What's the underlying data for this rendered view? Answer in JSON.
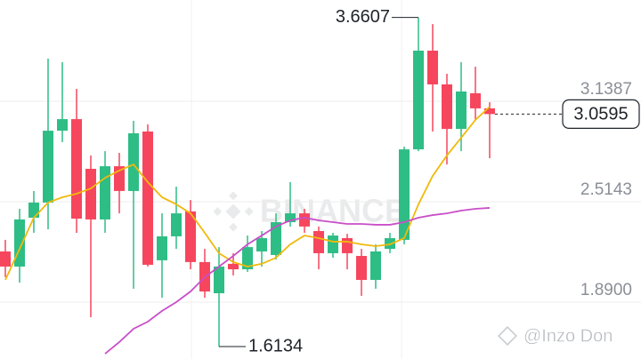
{
  "chart_data": {
    "type": "candlestick",
    "up_color": "#2ebd85",
    "down_color": "#f6465d",
    "open": [
      2.205,
      2.111,
      2.415,
      2.509,
      2.956,
      3.028,
      2.719,
      2.404,
      2.735,
      2.581,
      2.951,
      2.15,
      2.299,
      2.454,
      2.139,
      1.945,
      2.128,
      2.094,
      2.205,
      2.183,
      2.387,
      2.442,
      2.332,
      2.194,
      2.288,
      2.177,
      2.028,
      2.221,
      2.277,
      2.84,
      3.454,
      3.244,
      2.967,
      3.189,
      3.095
    ],
    "high": [
      2.277,
      2.47,
      2.581,
      3.404,
      3.382,
      3.216,
      2.802,
      2.829,
      2.818,
      3.017,
      2.995,
      2.442,
      2.608,
      2.525,
      2.221,
      2.232,
      2.194,
      2.304,
      2.332,
      2.442,
      2.636,
      2.47,
      2.36,
      2.321,
      2.315,
      2.221,
      2.249,
      2.321,
      2.857,
      3.6607,
      3.619,
      3.31,
      3.382,
      3.354,
      3.133
    ],
    "low": [
      2.045,
      2.011,
      2.321,
      2.343,
      2.885,
      2.321,
      1.796,
      2.321,
      2.442,
      1.973,
      2.111,
      1.917,
      2.221,
      2.094,
      1.917,
      1.6134,
      2.056,
      2.078,
      2.111,
      2.155,
      2.36,
      2.321,
      2.094,
      2.166,
      2.094,
      1.929,
      1.973,
      2.194,
      2.249,
      2.829,
      2.951,
      2.746,
      2.829,
      3.023,
      2.785
    ],
    "close": [
      2.111,
      2.404,
      2.509,
      2.956,
      3.028,
      2.409,
      2.404,
      2.735,
      2.581,
      2.94,
      2.122,
      2.299,
      2.442,
      2.139,
      1.956,
      2.111,
      2.094,
      2.232,
      2.288,
      2.387,
      2.442,
      2.36,
      2.194,
      2.304,
      2.194,
      2.028,
      2.205,
      2.288,
      2.84,
      3.454,
      3.244,
      2.967,
      3.2,
      3.095,
      3.0595
    ],
    "lines": [
      {
        "color": "#f0b90b",
        "values": [
          2.028,
          2.221,
          2.415,
          2.509,
          2.542,
          2.564,
          2.597,
          2.663,
          2.708,
          2.746,
          2.636,
          2.542,
          2.498,
          2.442,
          2.321,
          2.194,
          2.139,
          2.111,
          2.128,
          2.166,
          2.249,
          2.304,
          2.288,
          2.266,
          2.266,
          2.249,
          2.238,
          2.249,
          2.288,
          2.498,
          2.675,
          2.802,
          2.912,
          3.023,
          3.105
        ]
      },
      {
        "color": "#c94fc8",
        "values": [
          null,
          null,
          null,
          null,
          null,
          null,
          null,
          1.569,
          1.641,
          1.724,
          1.768,
          1.835,
          1.89,
          1.956,
          2.045,
          2.111,
          2.177,
          2.249,
          2.304,
          2.36,
          2.398,
          2.415,
          2.398,
          2.387,
          2.376,
          2.376,
          2.371,
          2.371,
          2.387,
          2.415,
          2.431,
          2.442,
          2.459,
          2.47,
          2.476
        ]
      }
    ],
    "ylim": [
      1.536,
      3.769
    ],
    "yticks": [
      {
        "value": 1.89,
        "label": "1.8900"
      },
      2.5143,
      3.1387
    ],
    "grid": true,
    "high_label": 3.6607,
    "low_label": 1.6134,
    "last_price": 3.0595,
    "watermark": "BINANCE",
    "credit": "@Inzo Don"
  }
}
